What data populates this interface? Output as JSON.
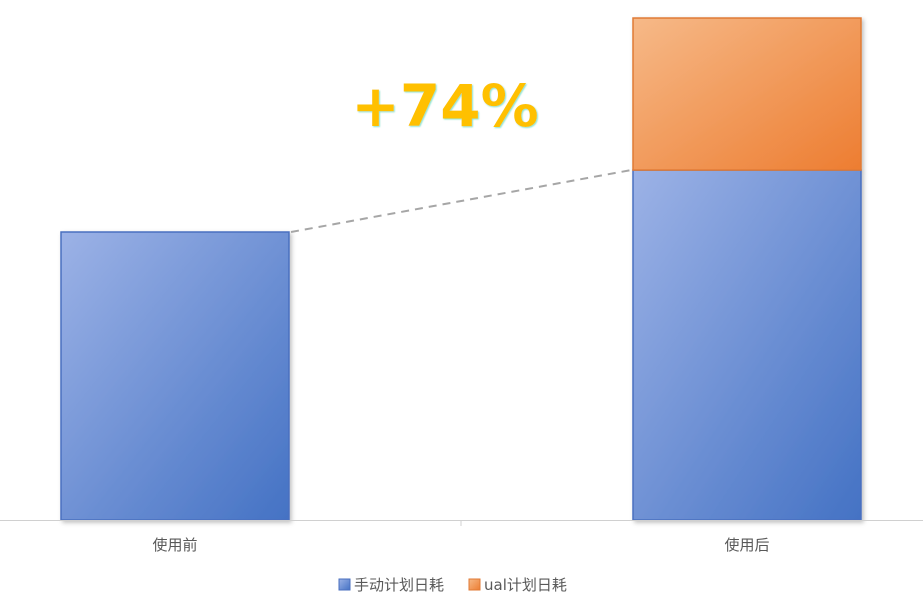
{
  "chart_data": {
    "type": "bar",
    "stacked": true,
    "title": "",
    "xlabel": "",
    "ylabel": "",
    "categories": [
      "使用前",
      "使用后"
    ],
    "series": [
      {
        "name": "手动计划日耗",
        "values": [
          100,
          121.5
        ],
        "color": "#4472c4"
      },
      {
        "name": "ual计划日耗",
        "values": [
          0,
          52.8
        ],
        "color": "#ed7d31"
      }
    ],
    "ylim": [
      0,
      180
    ],
    "grid": false,
    "y_axis_visible": false,
    "legend": "bottom",
    "annotation": {
      "text": "+74%",
      "color": "#ffc000"
    },
    "connector": "dashed line from top of 使用前 bar to top of 使用后 手动计划日耗 segment"
  }
}
